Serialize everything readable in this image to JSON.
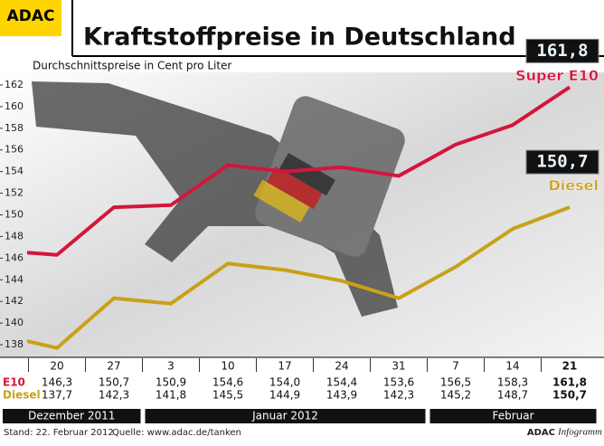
{
  "chart_data": {
    "type": "line",
    "brand": "ADAC",
    "title": "Kraftstoffpreise in Deutschland",
    "subtitle": "Durchschnittspreise in Cent pro Liter",
    "categories": [
      null,
      "20",
      "27",
      "3",
      "10",
      "17",
      "24",
      "31",
      "7",
      "14",
      "21"
    ],
    "months": [
      {
        "label": "Dezember 2011",
        "count": 3
      },
      {
        "label": "Januar 2012",
        "count": 5
      },
      {
        "label": "Februar",
        "count": 3
      }
    ],
    "series": [
      {
        "name": "Super E10",
        "short_name": "E10",
        "color": "#d3163c",
        "values": [
          146.7,
          146.3,
          150.7,
          150.9,
          154.6,
          154.0,
          154.4,
          153.6,
          156.5,
          158.3,
          161.8
        ],
        "value_labels": [
          null,
          "146,3",
          "150,7",
          "150,9",
          "154,6",
          "154,0",
          "154,4",
          "153,6",
          "156,5",
          "158,3",
          "161,8"
        ]
      },
      {
        "name": "Diesel",
        "short_name": "Diesel",
        "color": "#c9a118",
        "values": [
          138.9,
          137.7,
          142.3,
          141.8,
          145.5,
          144.9,
          143.9,
          142.3,
          145.2,
          148.7,
          150.7
        ],
        "value_labels": [
          null,
          "137,7",
          "142,3",
          "141,8",
          "145,5",
          "144,9",
          "143,9",
          "142,3",
          "145,2",
          "148,7",
          "150,7"
        ]
      }
    ],
    "ylim": [
      137,
      163
    ],
    "yticks": [
      138,
      140,
      142,
      144,
      146,
      148,
      150,
      152,
      154,
      156,
      158,
      160,
      162
    ],
    "footer": {
      "date": "Stand: 22. Februar 2012",
      "source": "Quelle: www.adac.de/tanken",
      "brand": "ADAC",
      "product": "Infogramm"
    }
  }
}
